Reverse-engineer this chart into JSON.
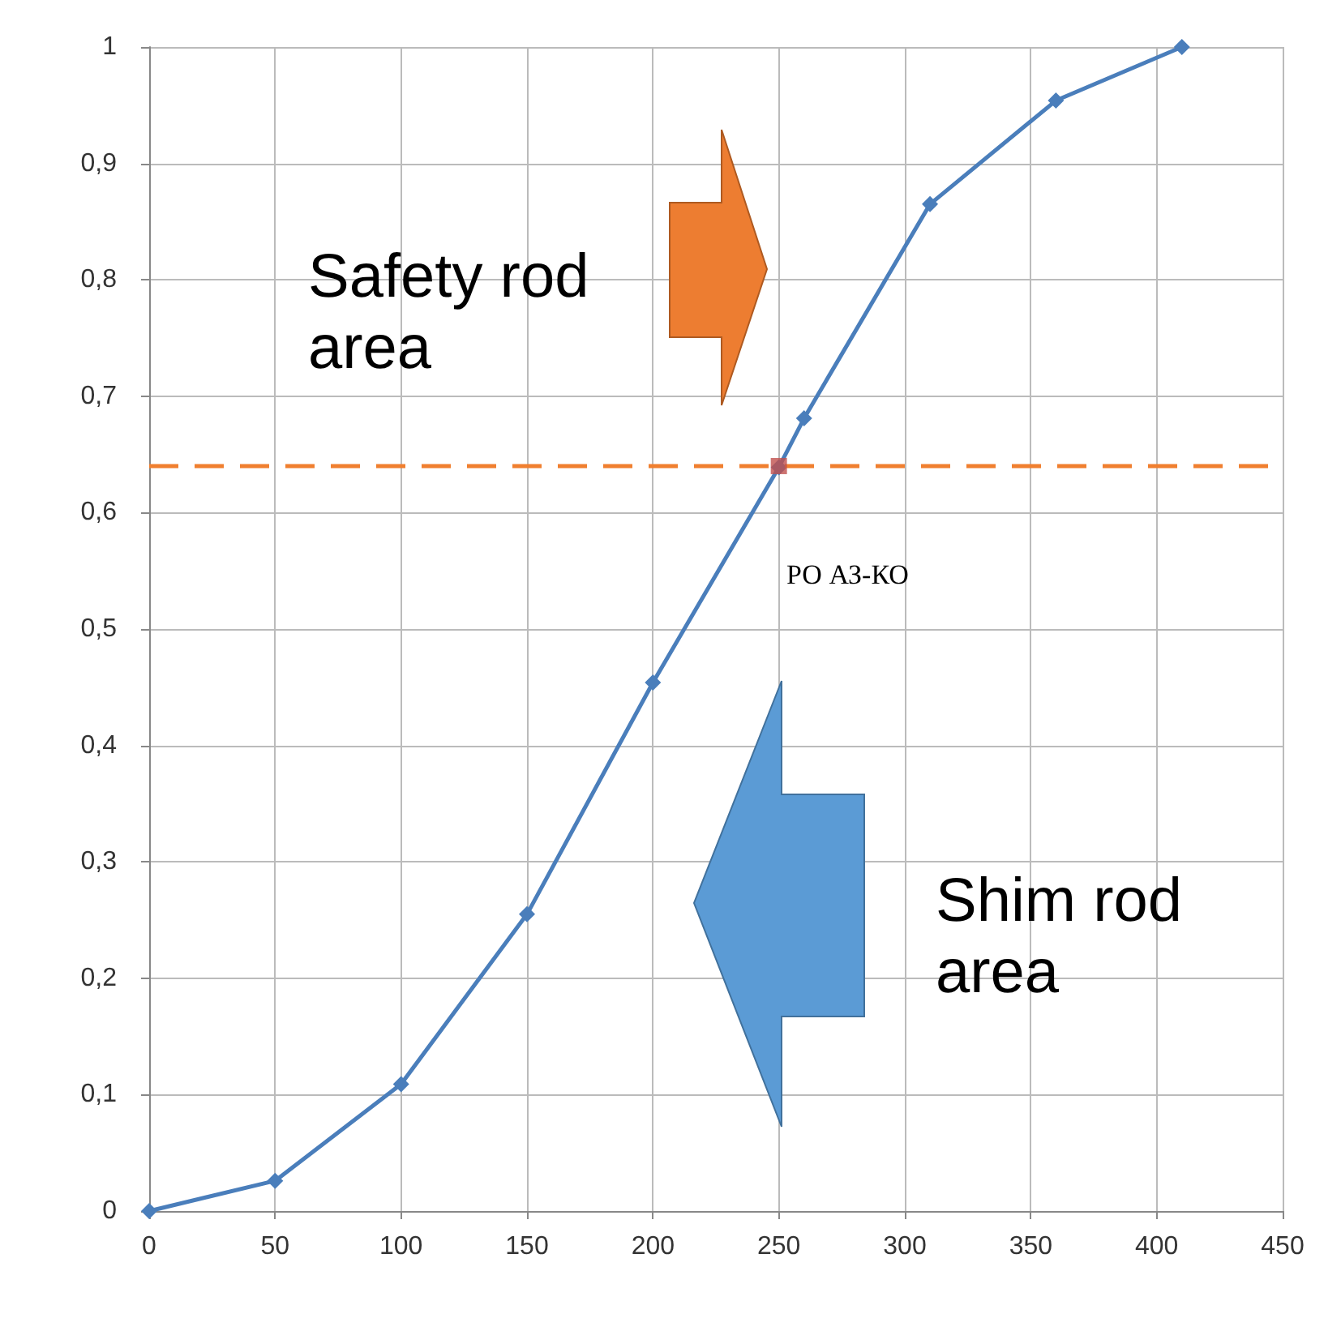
{
  "chart_data": {
    "type": "line",
    "x": [
      0,
      50,
      100,
      150,
      200,
      250,
      260,
      310,
      360,
      410
    ],
    "series": [
      {
        "color": "#4a7ebb",
        "values": [
          0,
          0.026,
          0.109,
          0.255,
          0.454,
          0.639,
          0.681,
          0.865,
          0.954,
          1.0
        ],
        "marker": "diamond"
      },
      {
        "type": "scatter",
        "color": "#c0504d",
        "x": [
          250
        ],
        "values": [
          0.64
        ],
        "marker": "square"
      }
    ],
    "xlim": [
      0,
      450
    ],
    "xticks": [
      0,
      50,
      100,
      150,
      200,
      250,
      300,
      350,
      400,
      450
    ],
    "ylim": [
      0,
      1
    ],
    "yticks": [
      0,
      {
        "value": 0.1,
        "label": "0,1"
      },
      {
        "value": 0.2,
        "label": "0,2"
      },
      {
        "value": 0.3,
        "label": "0,3"
      },
      {
        "value": 0.4,
        "label": "0,4"
      },
      {
        "value": 0.5,
        "label": "0,5"
      },
      {
        "value": 0.6,
        "label": "0,6"
      },
      {
        "value": 0.7,
        "label": "0,7"
      },
      {
        "value": 0.8,
        "label": "0,8"
      },
      {
        "value": 0.9,
        "label": "0,9"
      },
      1
    ],
    "ref_lines": [
      {
        "axis": "y",
        "value": 0.64,
        "color": "#f07f2f",
        "line_style": "dashed"
      }
    ],
    "annotations": [
      "РО АЗ-КО",
      "Safety rod area",
      "Shim rod area"
    ],
    "grid": true,
    "line_style": "solid"
  }
}
